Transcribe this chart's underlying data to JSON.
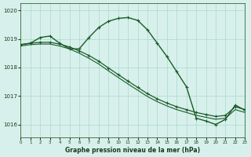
{
  "title": "Graphe pression niveau de la mer (hPa)",
  "bg_color": "#d8f0ec",
  "grid_color": "#a8d8cc",
  "line_color": "#1a5c28",
  "xlim": [
    0,
    23
  ],
  "ylim": [
    1015.55,
    1020.25
  ],
  "yticks": [
    1016,
    1017,
    1018,
    1019,
    1020
  ],
  "xticks": [
    0,
    1,
    2,
    3,
    4,
    5,
    6,
    7,
    8,
    9,
    10,
    11,
    12,
    13,
    14,
    15,
    16,
    17,
    18,
    19,
    20,
    21,
    22,
    23
  ],
  "s1_x": [
    0,
    1,
    2,
    3,
    4,
    5,
    6,
    7,
    8,
    9,
    10,
    11,
    12,
    13,
    14,
    15,
    16,
    17,
    18,
    19,
    20,
    21,
    22,
    23
  ],
  "s1_y": [
    1018.8,
    1018.85,
    1019.05,
    1019.1,
    1018.85,
    1018.65,
    1018.65,
    1019.05,
    1019.4,
    1019.62,
    1019.72,
    1019.75,
    1019.65,
    1019.32,
    1018.85,
    1018.38,
    1017.85,
    1017.32,
    1016.22,
    1016.12,
    1016.0,
    1016.18,
    1016.68,
    1016.5
  ],
  "s2_x": [
    0,
    1,
    2,
    3,
    4,
    5,
    6,
    7,
    8,
    9,
    10,
    11,
    12,
    13,
    14,
    15,
    16,
    17,
    18,
    19,
    20,
    21,
    22,
    23
  ],
  "s2_y": [
    1018.8,
    1018.85,
    1018.88,
    1018.88,
    1018.82,
    1018.72,
    1018.58,
    1018.42,
    1018.22,
    1017.98,
    1017.75,
    1017.52,
    1017.3,
    1017.08,
    1016.9,
    1016.75,
    1016.62,
    1016.52,
    1016.42,
    1016.35,
    1016.28,
    1016.32,
    1016.62,
    1016.52
  ],
  "s3_x": [
    0,
    1,
    2,
    3,
    4,
    5,
    6,
    7,
    8,
    9,
    10,
    11,
    12,
    13,
    14,
    15,
    16,
    17,
    18,
    19,
    20,
    21,
    22,
    23
  ],
  "s3_y": [
    1018.75,
    1018.8,
    1018.82,
    1018.82,
    1018.75,
    1018.65,
    1018.5,
    1018.32,
    1018.12,
    1017.88,
    1017.65,
    1017.42,
    1017.2,
    1016.98,
    1016.8,
    1016.65,
    1016.52,
    1016.42,
    1016.32,
    1016.25,
    1016.18,
    1016.22,
    1016.52,
    1016.42
  ]
}
